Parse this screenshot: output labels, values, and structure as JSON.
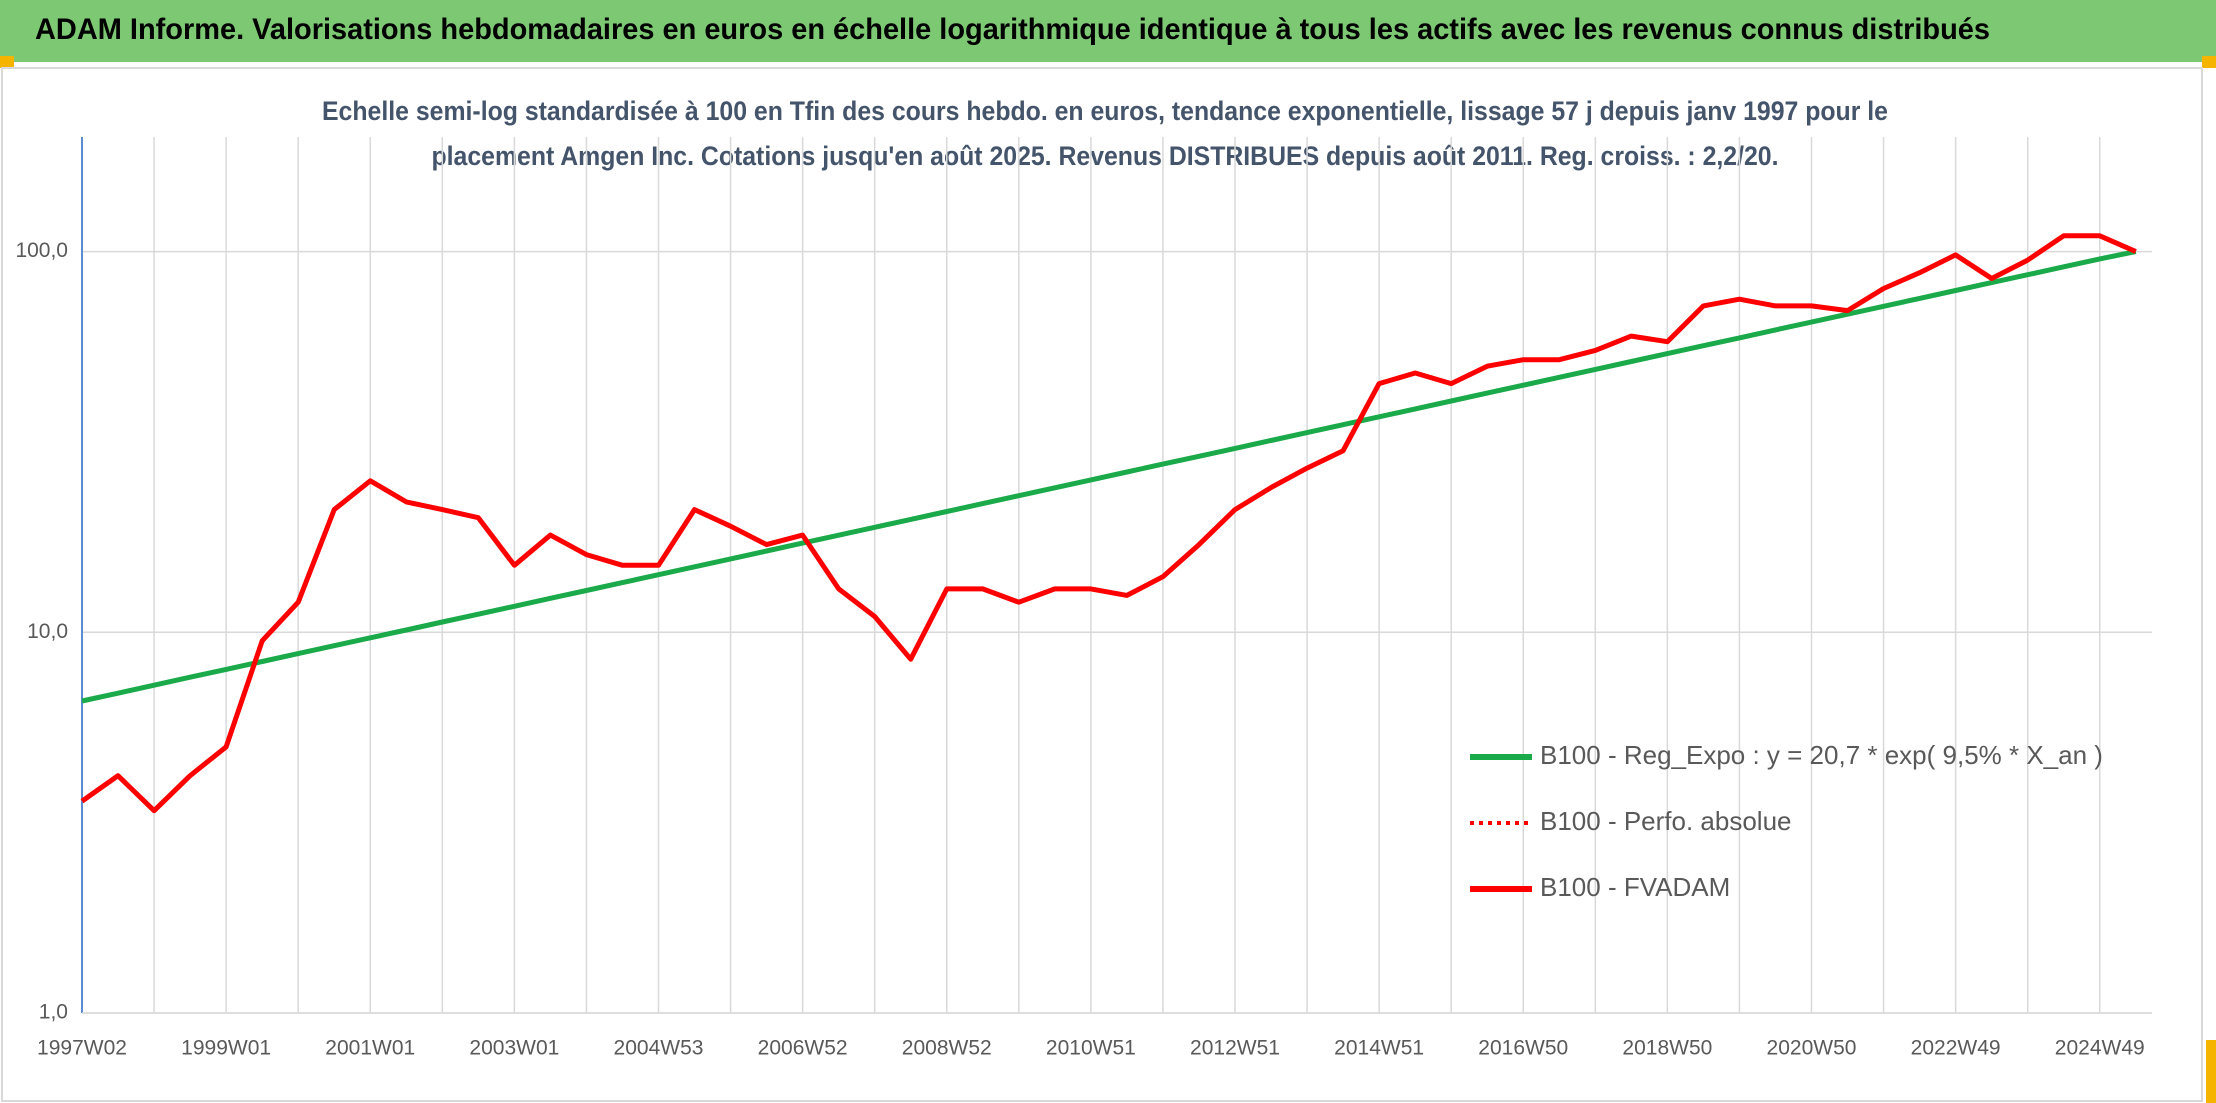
{
  "chart_data": {
    "type": "line",
    "title": "ADAM Informe. Valorisations hebdomadaires en euros en échelle logarithmique identique à tous les actifs avec les revenus connus distribués",
    "subtitle": [
      "Echelle semi-log standardisée à 100 en Tfin des cours hebdo. en euros, tendance exponentielle, lissage 57 j depuis janv 1997 pour le",
      "placement Amgen Inc. Cotations jusqu'en août 2025. Revenus DISTRIBUES depuis août 2011. Reg. croiss. : 2,2/20."
    ],
    "log_y": true,
    "grid": true,
    "legend": "lower right",
    "categories": [
      "1997W02",
      null,
      null,
      null,
      "1999W01",
      null,
      null,
      null,
      "2001W01",
      null,
      null,
      null,
      "2003W01",
      null,
      null,
      null,
      "2004W53",
      null,
      null,
      null,
      "2006W52",
      null,
      null,
      null,
      "2008W52",
      null,
      null,
      null,
      "2010W51",
      null,
      null,
      null,
      "2012W51",
      null,
      null,
      null,
      "2014W51",
      null,
      null,
      null,
      "2016W50",
      null,
      null,
      null,
      "2018W50",
      null,
      null,
      null,
      "2020W50",
      null,
      null,
      null,
      "2022W49",
      null,
      null,
      null,
      "2024W49",
      null
    ],
    "ylim": [
      1,
      200
    ],
    "yticks": [
      {
        "value": 1,
        "label": "1,0"
      },
      {
        "value": 10,
        "label": "10,0"
      },
      {
        "value": 100,
        "label": "100,0"
      }
    ],
    "series": [
      {
        "name": "B100 - Reg_Expo : y = 20,7 * exp( 9,5% *  X_an )",
        "color": "#1aaa4a",
        "style": "solid",
        "values": [
          6.6,
          6.92,
          7.26,
          7.62,
          7.99,
          8.38,
          8.79,
          9.22,
          9.67,
          10.14,
          10.64,
          11.16,
          11.7,
          12.28,
          12.88,
          13.51,
          14.17,
          14.86,
          15.59,
          16.35,
          17.15,
          17.99,
          18.87,
          19.79,
          20.76,
          21.78,
          22.84,
          23.96,
          25.13,
          26.36,
          27.65,
          29.0,
          30.42,
          31.91,
          33.47,
          35.1,
          36.82,
          38.62,
          40.51,
          42.49,
          44.57,
          46.75,
          49.04,
          51.43,
          53.95,
          56.59,
          59.35,
          62.26,
          65.3,
          68.5,
          71.85,
          75.36,
          79.05,
          82.91,
          86.97,
          91.22,
          95.68,
          100
        ]
      },
      {
        "name": "B100 - Perfo. absolue",
        "color": "#ff0000",
        "style": "dotted"
      },
      {
        "name": "B100 - FVADAM",
        "color": "#ff0000",
        "style": "solid",
        "values": [
          3.6,
          4.2,
          3.4,
          4.2,
          5.0,
          9.5,
          12,
          21,
          25,
          22,
          21,
          20,
          15,
          18,
          16,
          15,
          15,
          21,
          19,
          17,
          18,
          13,
          11,
          8.5,
          13,
          13,
          12,
          13,
          13,
          12.5,
          14,
          17,
          21,
          24,
          27,
          30,
          45,
          48,
          45,
          50,
          52,
          52,
          55,
          60,
          58,
          72,
          75,
          72,
          72,
          70,
          80,
          88,
          98,
          85,
          95,
          110,
          110,
          100
        ]
      }
    ]
  }
}
